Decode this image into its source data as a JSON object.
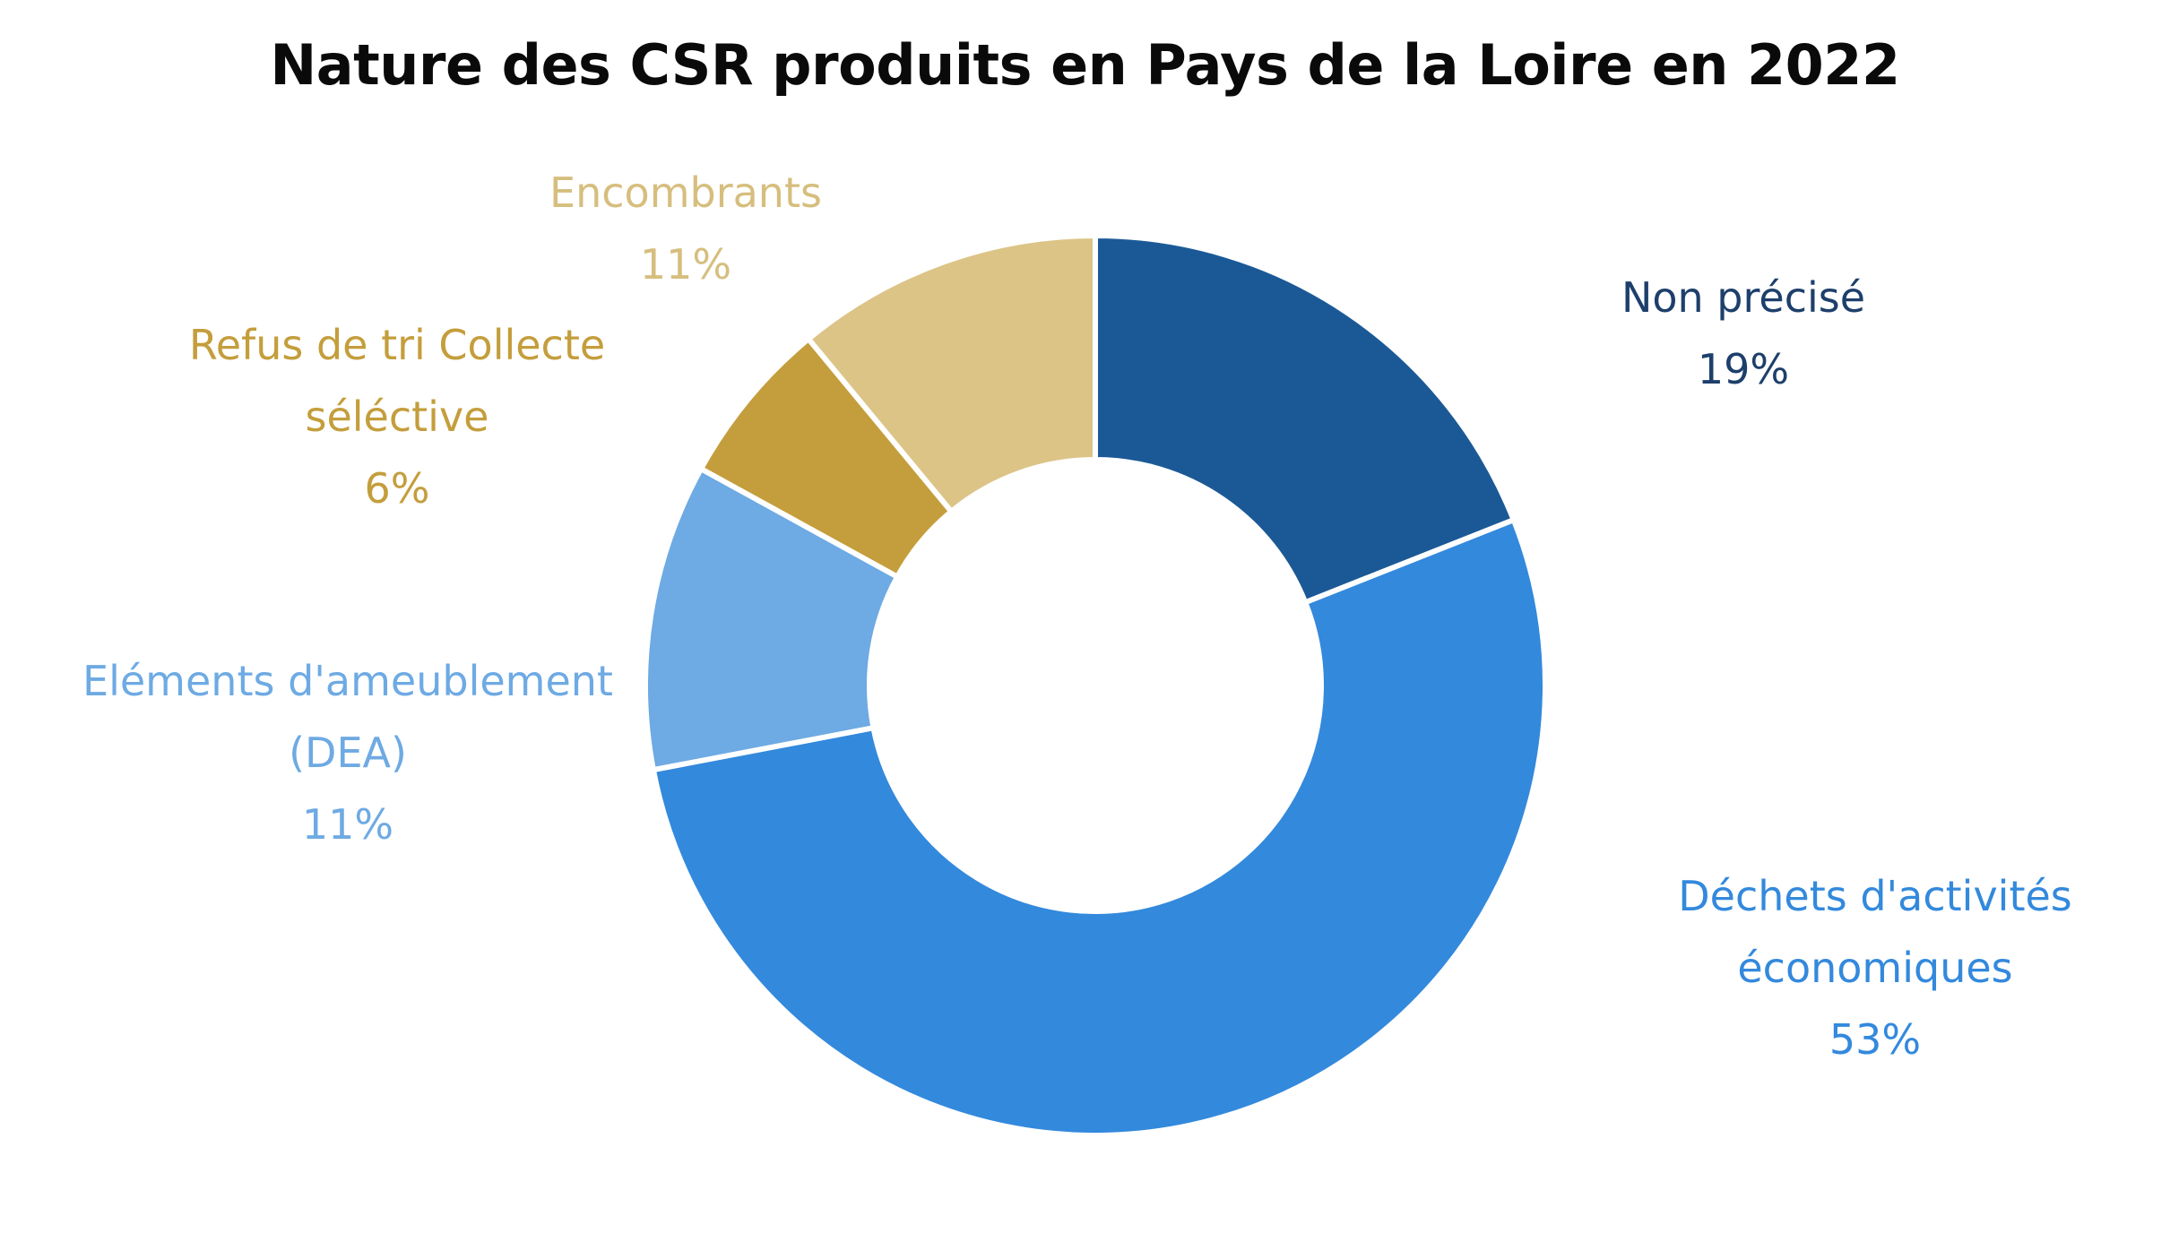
{
  "chart_data": {
    "type": "pie",
    "donut": true,
    "title": "Nature des CSR produits en Pays de la Loire en 2022",
    "legend": "none",
    "slices": [
      {
        "label_lines": [
          "Non précisé"
        ],
        "value": 19,
        "value_label": "19%",
        "color": "#1B5996",
        "label_color": "#1D3F6B"
      },
      {
        "label_lines": [
          "Déchets d'activités",
          "économiques"
        ],
        "value": 53,
        "value_label": "53%",
        "color": "#3389DC",
        "label_color": "#3389DC"
      },
      {
        "label_lines": [
          "Eléments d'ameublement",
          "(DEA)"
        ],
        "value": 11,
        "value_label": "11%",
        "color": "#6EAAE3",
        "label_color": "#6EAAE3"
      },
      {
        "label_lines": [
          "Refus de tri Collecte",
          "séléctive"
        ],
        "value": 6,
        "value_label": "6%",
        "color": "#C49E3C",
        "label_color": "#C49E3C"
      },
      {
        "label_lines": [
          "Encombrants"
        ],
        "value": 11,
        "value_label": "11%",
        "color": "#DCC487",
        "label_color": "#D6BE7E"
      }
    ]
  }
}
